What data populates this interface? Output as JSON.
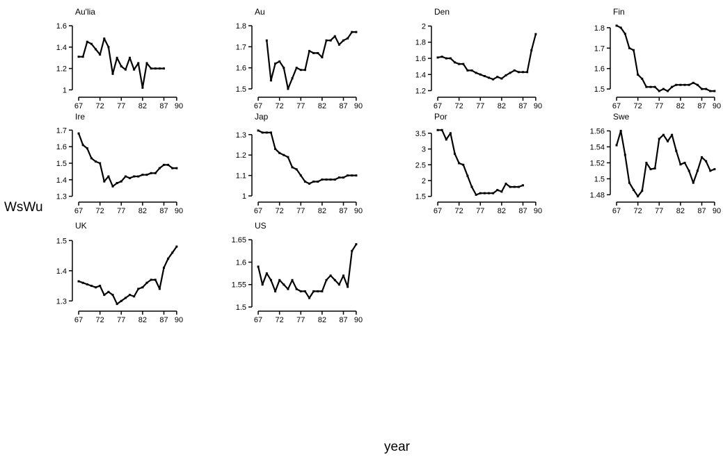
{
  "figure": {
    "ylabel": "WsWu",
    "xlabel": "year"
  },
  "chart_data": [
    {
      "type": "line",
      "title": "Au'lia",
      "yticks": [
        "1",
        "1.2",
        "1.4",
        "1.6"
      ],
      "ytick_values": [
        1,
        1.2,
        1.4,
        1.6
      ],
      "ylim": [
        0.97,
        1.62
      ],
      "xticks": [
        "67",
        "72",
        "77",
        "82",
        "87",
        "90"
      ],
      "xtick_values": [
        67,
        72,
        77,
        82,
        87,
        90
      ],
      "xlim": [
        66.5,
        91
      ],
      "series": [
        {
          "x": [
            67,
            68,
            69,
            70,
            71,
            72,
            73,
            74,
            75,
            76,
            77,
            78,
            79,
            80,
            81,
            82,
            83,
            84,
            85,
            86,
            87
          ],
          "y": [
            1.31,
            1.31,
            1.45,
            1.43,
            1.38,
            1.33,
            1.48,
            1.4,
            1.15,
            1.3,
            1.22,
            1.19,
            1.3,
            1.19,
            1.25,
            1.02,
            1.25,
            1.2,
            1.2,
            1.2,
            1.2
          ]
        }
      ]
    },
    {
      "type": "line",
      "title": "Au",
      "yticks": [
        "1.5",
        "1.6",
        "1.7",
        "1.8"
      ],
      "ytick_values": [
        1.5,
        1.6,
        1.7,
        1.8
      ],
      "ylim": [
        1.48,
        1.81
      ],
      "xticks": [
        "67",
        "72",
        "77",
        "82",
        "87",
        "90"
      ],
      "xtick_values": [
        67,
        72,
        77,
        82,
        87,
        90
      ],
      "xlim": [
        66.5,
        91
      ],
      "series": [
        {
          "x": [
            69,
            70,
            71,
            72,
            73,
            74,
            75,
            76,
            77,
            78,
            79,
            80,
            81,
            82,
            83,
            84,
            85,
            86,
            87,
            88,
            89,
            90
          ],
          "y": [
            1.73,
            1.54,
            1.62,
            1.63,
            1.6,
            1.5,
            1.55,
            1.6,
            1.59,
            1.59,
            1.68,
            1.67,
            1.67,
            1.65,
            1.73,
            1.73,
            1.75,
            1.71,
            1.73,
            1.74,
            1.77,
            1.77
          ]
        }
      ]
    },
    {
      "type": "line",
      "title": "Den",
      "yticks": [
        "1.2",
        "1.4",
        "1.6",
        "1.8",
        "2"
      ],
      "ytick_values": [
        1.2,
        1.4,
        1.6,
        1.8,
        2
      ],
      "ylim": [
        1.17,
        2.03
      ],
      "xticks": [
        "67",
        "72",
        "77",
        "82",
        "87",
        "90"
      ],
      "xtick_values": [
        67,
        72,
        77,
        82,
        87,
        90
      ],
      "xlim": [
        66.5,
        91
      ],
      "series": [
        {
          "x": [
            67,
            68,
            69,
            70,
            71,
            72,
            73,
            74,
            75,
            76,
            77,
            78,
            79,
            80,
            81,
            82,
            83,
            84,
            85,
            86,
            87,
            88,
            89,
            90
          ],
          "y": [
            1.61,
            1.62,
            1.6,
            1.6,
            1.55,
            1.53,
            1.53,
            1.45,
            1.45,
            1.42,
            1.4,
            1.38,
            1.36,
            1.34,
            1.37,
            1.35,
            1.39,
            1.42,
            1.45,
            1.43,
            1.43,
            1.43,
            1.7,
            1.9
          ]
        }
      ]
    },
    {
      "type": "line",
      "title": "Fin",
      "yticks": [
        "1.5",
        "1.6",
        "1.7",
        "1.8"
      ],
      "ytick_values": [
        1.5,
        1.6,
        1.7,
        1.8
      ],
      "ylim": [
        1.48,
        1.82
      ],
      "xticks": [
        "67",
        "72",
        "77",
        "82",
        "87",
        "90"
      ],
      "xtick_values": [
        67,
        72,
        77,
        82,
        87,
        90
      ],
      "xlim": [
        66.5,
        91
      ],
      "series": [
        {
          "x": [
            67,
            68,
            69,
            70,
            71,
            72,
            73,
            74,
            75,
            76,
            77,
            78,
            79,
            80,
            81,
            82,
            83,
            84,
            85,
            86,
            87,
            88,
            89,
            90
          ],
          "y": [
            1.81,
            1.8,
            1.77,
            1.7,
            1.69,
            1.57,
            1.55,
            1.51,
            1.51,
            1.51,
            1.49,
            1.5,
            1.49,
            1.51,
            1.52,
            1.52,
            1.52,
            1.52,
            1.53,
            1.52,
            1.5,
            1.5,
            1.49,
            1.49
          ]
        }
      ]
    },
    {
      "type": "line",
      "title": "Ire",
      "yticks": [
        "1.3",
        "1.4",
        "1.5",
        "1.6",
        "1.7"
      ],
      "ytick_values": [
        1.3,
        1.4,
        1.5,
        1.6,
        1.7
      ],
      "ylim": [
        1.29,
        1.71
      ],
      "xticks": [
        "67",
        "72",
        "77",
        "82",
        "87",
        "90"
      ],
      "xtick_values": [
        67,
        72,
        77,
        82,
        87,
        90
      ],
      "xlim": [
        66.5,
        91
      ],
      "series": [
        {
          "x": [
            67,
            68,
            69,
            70,
            71,
            72,
            73,
            74,
            75,
            76,
            77,
            78,
            79,
            80,
            81,
            82,
            83,
            84,
            85,
            86,
            87,
            88,
            89,
            90
          ],
          "y": [
            1.68,
            1.61,
            1.59,
            1.53,
            1.51,
            1.5,
            1.39,
            1.42,
            1.36,
            1.38,
            1.39,
            1.42,
            1.41,
            1.42,
            1.42,
            1.43,
            1.43,
            1.44,
            1.44,
            1.47,
            1.49,
            1.49,
            1.47,
            1.47
          ]
        }
      ]
    },
    {
      "type": "line",
      "title": "Jap",
      "yticks": [
        "1",
        "1.1",
        "1.2",
        "1.3"
      ],
      "ytick_values": [
        1,
        1.1,
        1.2,
        1.3
      ],
      "ylim": [
        0.99,
        1.33
      ],
      "xticks": [
        "67",
        "72",
        "77",
        "82",
        "87",
        "90"
      ],
      "xtick_values": [
        67,
        72,
        77,
        82,
        87,
        90
      ],
      "xlim": [
        66.5,
        91
      ],
      "series": [
        {
          "x": [
            67,
            68,
            69,
            70,
            71,
            72,
            73,
            74,
            75,
            76,
            77,
            78,
            79,
            80,
            81,
            82,
            83,
            84,
            85,
            86,
            87,
            88,
            89,
            90
          ],
          "y": [
            1.32,
            1.31,
            1.31,
            1.31,
            1.23,
            1.21,
            1.2,
            1.19,
            1.14,
            1.13,
            1.1,
            1.07,
            1.06,
            1.07,
            1.07,
            1.08,
            1.08,
            1.08,
            1.08,
            1.09,
            1.09,
            1.1,
            1.1,
            1.1
          ]
        }
      ]
    },
    {
      "type": "line",
      "title": "Por",
      "yticks": [
        "1.5",
        "2",
        "2.5",
        "3",
        "3.5"
      ],
      "ytick_values": [
        1.5,
        2,
        2.5,
        3,
        3.5
      ],
      "ylim": [
        1.45,
        3.65
      ],
      "xticks": [
        "67",
        "72",
        "77",
        "82",
        "87",
        "90"
      ],
      "xtick_values": [
        67,
        72,
        77,
        82,
        87,
        90
      ],
      "xlim": [
        66.5,
        91
      ],
      "series": [
        {
          "x": [
            67,
            68,
            69,
            70,
            71,
            72,
            73,
            74,
            75,
            76,
            77,
            78,
            79,
            80,
            81,
            82,
            83,
            84,
            85,
            86,
            87
          ],
          "y": [
            3.6,
            3.6,
            3.3,
            3.5,
            2.85,
            2.55,
            2.5,
            2.15,
            1.8,
            1.55,
            1.6,
            1.6,
            1.6,
            1.6,
            1.7,
            1.65,
            1.9,
            1.8,
            1.8,
            1.8,
            1.85
          ]
        }
      ]
    },
    {
      "type": "line",
      "title": "Swe",
      "yticks": [
        "1.48",
        "1.5",
        "1.52",
        "1.54",
        "1.56"
      ],
      "ytick_values": [
        1.48,
        1.5,
        1.52,
        1.54,
        1.56
      ],
      "ylim": [
        1.476,
        1.563
      ],
      "xticks": [
        "67",
        "72",
        "77",
        "82",
        "87",
        "90"
      ],
      "xtick_values": [
        67,
        72,
        77,
        82,
        87,
        90
      ],
      "xlim": [
        66.5,
        91
      ],
      "series": [
        {
          "x": [
            67,
            68,
            69,
            70,
            71,
            72,
            73,
            74,
            75,
            76,
            77,
            78,
            79,
            80,
            81,
            82,
            83,
            84,
            85,
            86,
            87,
            88,
            89,
            90
          ],
          "y": [
            1.542,
            1.56,
            1.53,
            1.495,
            1.486,
            1.478,
            1.485,
            1.52,
            1.512,
            1.513,
            1.55,
            1.555,
            1.547,
            1.555,
            1.535,
            1.518,
            1.52,
            1.51,
            1.495,
            1.51,
            1.527,
            1.522,
            1.51,
            1.512
          ]
        }
      ]
    },
    {
      "type": "line",
      "title": "UK",
      "yticks": [
        "1.3",
        "1.4",
        "1.5"
      ],
      "ytick_values": [
        1.3,
        1.4,
        1.5
      ],
      "ylim": [
        1.28,
        1.51
      ],
      "xticks": [
        "67",
        "72",
        "77",
        "82",
        "87",
        "90"
      ],
      "xtick_values": [
        67,
        72,
        77,
        82,
        87,
        90
      ],
      "xlim": [
        66.5,
        91
      ],
      "series": [
        {
          "x": [
            67,
            68,
            69,
            70,
            71,
            72,
            73,
            74,
            75,
            76,
            77,
            78,
            79,
            80,
            81,
            82,
            83,
            84,
            85,
            86,
            87,
            88,
            89,
            90
          ],
          "y": [
            1.365,
            1.36,
            1.355,
            1.35,
            1.345,
            1.35,
            1.32,
            1.33,
            1.32,
            1.29,
            1.3,
            1.31,
            1.32,
            1.315,
            1.34,
            1.345,
            1.36,
            1.37,
            1.37,
            1.34,
            1.41,
            1.44,
            1.46,
            1.48
          ]
        }
      ]
    },
    {
      "type": "line",
      "title": "US",
      "yticks": [
        "1.5",
        "1.55",
        "1.6",
        "1.65"
      ],
      "ytick_values": [
        1.5,
        1.55,
        1.6,
        1.65
      ],
      "ylim": [
        1.5,
        1.655
      ],
      "xticks": [
        "67",
        "72",
        "77",
        "82",
        "87",
        "90"
      ],
      "xtick_values": [
        67,
        72,
        77,
        82,
        87,
        90
      ],
      "xlim": [
        66.5,
        91
      ],
      "series": [
        {
          "x": [
            67,
            68,
            69,
            70,
            71,
            72,
            73,
            74,
            75,
            76,
            77,
            78,
            79,
            80,
            81,
            82,
            83,
            84,
            85,
            86,
            87,
            88,
            89,
            90
          ],
          "y": [
            1.59,
            1.55,
            1.575,
            1.56,
            1.535,
            1.56,
            1.55,
            1.54,
            1.56,
            1.54,
            1.535,
            1.535,
            1.52,
            1.535,
            1.535,
            1.535,
            1.56,
            1.57,
            1.56,
            1.55,
            1.57,
            1.545,
            1.625,
            1.64
          ]
        }
      ]
    }
  ]
}
